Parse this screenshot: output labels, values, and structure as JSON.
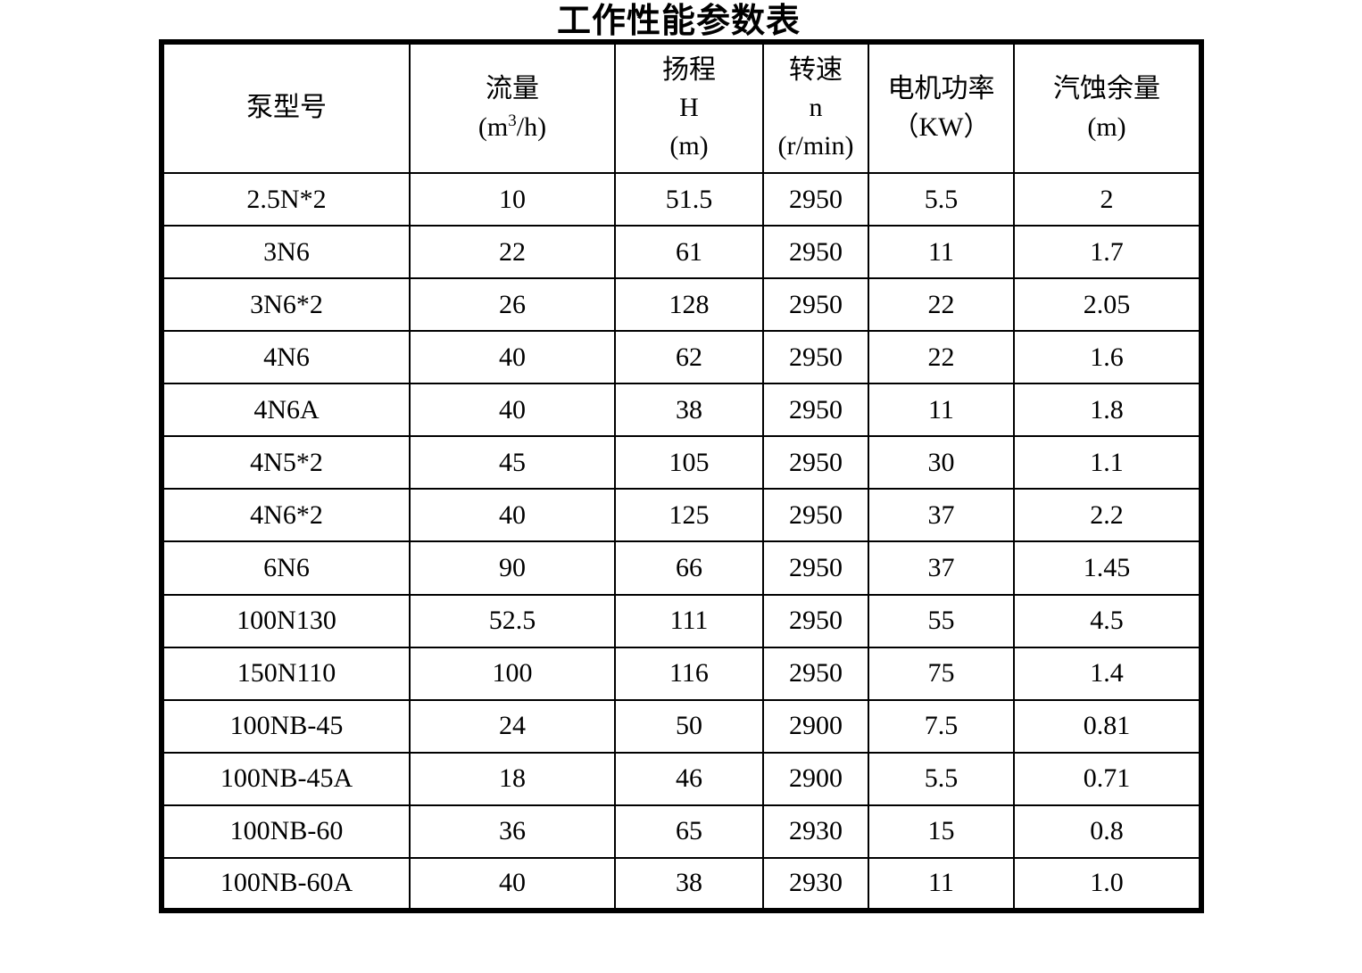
{
  "title": "工作性能参数表",
  "table": {
    "headers": {
      "pump_model": "泵型号",
      "flow_line1": "流量",
      "flow_unit_pre": "(m",
      "flow_unit_sup": "3",
      "flow_unit_post": "/h)",
      "head_line1": "扬程",
      "head_line2": "H",
      "head_line3": "(m)",
      "speed_line1": "转速",
      "speed_line2": "n",
      "speed_line3": "(r/min)",
      "power_line1": "电机功率",
      "power_line2": "（KW）",
      "npsh_line1": "汽蚀余量",
      "npsh_line2": "(m)"
    },
    "rows": [
      [
        "2.5N*2",
        "10",
        "51.5",
        "2950",
        "5.5",
        "2"
      ],
      [
        "3N6",
        "22",
        "61",
        "2950",
        "11",
        "1.7"
      ],
      [
        "3N6*2",
        "26",
        "128",
        "2950",
        "22",
        "2.05"
      ],
      [
        "4N6",
        "40",
        "62",
        "2950",
        "22",
        "1.6"
      ],
      [
        "4N6A",
        "40",
        "38",
        "2950",
        "11",
        "1.8"
      ],
      [
        "4N5*2",
        "45",
        "105",
        "2950",
        "30",
        "1.1"
      ],
      [
        "4N6*2",
        "40",
        "125",
        "2950",
        "37",
        "2.2"
      ],
      [
        "6N6",
        "90",
        "66",
        "2950",
        "37",
        "1.45"
      ],
      [
        "100N130",
        "52.5",
        "111",
        "2950",
        "55",
        "4.5"
      ],
      [
        "150N110",
        "100",
        "116",
        "2950",
        "75",
        "1.4"
      ],
      [
        "100NB-45",
        "24",
        "50",
        "2900",
        "7.5",
        "0.81"
      ],
      [
        "100NB-45A",
        "18",
        "46",
        "2900",
        "5.5",
        "0.71"
      ],
      [
        "100NB-60",
        "36",
        "65",
        "2930",
        "15",
        "0.8"
      ],
      [
        "100NB-60A",
        "40",
        "38",
        "2930",
        "11",
        "1.0"
      ]
    ]
  }
}
